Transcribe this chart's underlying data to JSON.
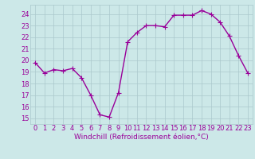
{
  "x": [
    0,
    1,
    2,
    3,
    4,
    5,
    6,
    7,
    8,
    9,
    10,
    11,
    12,
    13,
    14,
    15,
    16,
    17,
    18,
    19,
    20,
    21,
    22,
    23
  ],
  "y": [
    19.8,
    18.9,
    19.2,
    19.1,
    19.3,
    18.5,
    17.0,
    15.3,
    15.1,
    17.2,
    21.6,
    22.4,
    23.0,
    23.0,
    22.9,
    23.9,
    23.9,
    23.9,
    24.3,
    24.0,
    23.3,
    22.1,
    20.4,
    18.9
  ],
  "line_color": "#990099",
  "marker": "+",
  "marker_size": 4,
  "background_color": "#cce8e8",
  "grid_color": "#aac8cc",
  "tick_color": "#990099",
  "xlabel": "Windchill (Refroidissement éolien,°C)",
  "xlabel_color": "#990099",
  "xlabel_fontsize": 6.5,
  "ytick_labels": [
    "15",
    "16",
    "17",
    "18",
    "19",
    "20",
    "21",
    "22",
    "23",
    "24"
  ],
  "ytick_values": [
    15,
    16,
    17,
    18,
    19,
    20,
    21,
    22,
    23,
    24
  ],
  "ylim": [
    14.5,
    24.8
  ],
  "xlim": [
    -0.5,
    23.5
  ],
  "tick_fontsize": 6,
  "line_width": 1.0
}
